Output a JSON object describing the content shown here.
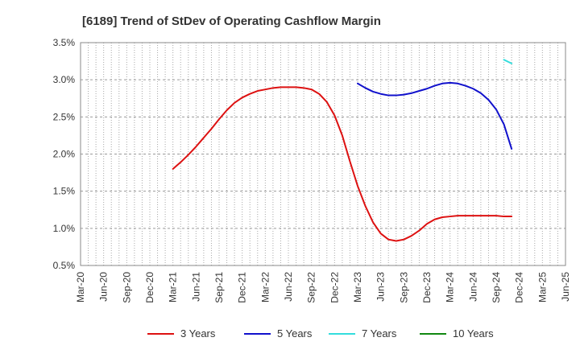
{
  "chart_data": {
    "type": "line",
    "title": "[6189]  Trend of StDev of Operating Cashflow Margin",
    "xlabel": "",
    "ylabel": "",
    "grid": true,
    "legend_position": "bottom",
    "x_ticks": [
      "Mar-20",
      "Jun-20",
      "Sep-20",
      "Dec-20",
      "Mar-21",
      "Jun-21",
      "Sep-21",
      "Dec-21",
      "Mar-22",
      "Jun-22",
      "Sep-22",
      "Dec-22",
      "Mar-23",
      "Jun-23",
      "Sep-23",
      "Dec-23",
      "Mar-24",
      "Jun-24",
      "Sep-24",
      "Dec-24",
      "Mar-25",
      "Jun-25"
    ],
    "y_ticks": [
      "0.5%",
      "1.0%",
      "1.5%",
      "2.0%",
      "2.5%",
      "3.0%",
      "3.5%"
    ],
    "ylim": [
      0.5,
      3.5
    ],
    "y_unit": "%",
    "series": [
      {
        "name": "3 Years",
        "color": "#dd1111",
        "points": [
          [
            "Mar-21",
            1.8
          ],
          [
            "Apr-21",
            1.89
          ],
          [
            "May-21",
            1.99
          ],
          [
            "Jun-21",
            2.1
          ],
          [
            "Jul-21",
            2.22
          ],
          [
            "Aug-21",
            2.34
          ],
          [
            "Sep-21",
            2.47
          ],
          [
            "Oct-21",
            2.59
          ],
          [
            "Nov-21",
            2.69
          ],
          [
            "Dec-21",
            2.76
          ],
          [
            "Jan-22",
            2.81
          ],
          [
            "Feb-22",
            2.85
          ],
          [
            "Mar-22",
            2.87
          ],
          [
            "Apr-22",
            2.89
          ],
          [
            "May-22",
            2.9
          ],
          [
            "Jun-22",
            2.9
          ],
          [
            "Jul-22",
            2.9
          ],
          [
            "Aug-22",
            2.89
          ],
          [
            "Sep-22",
            2.87
          ],
          [
            "Oct-22",
            2.81
          ],
          [
            "Nov-22",
            2.7
          ],
          [
            "Dec-22",
            2.52
          ],
          [
            "Jan-23",
            2.25
          ],
          [
            "Feb-23",
            1.9
          ],
          [
            "Mar-23",
            1.57
          ],
          [
            "Apr-23",
            1.3
          ],
          [
            "May-23",
            1.08
          ],
          [
            "Jun-23",
            0.93
          ],
          [
            "Jul-23",
            0.85
          ],
          [
            "Aug-23",
            0.83
          ],
          [
            "Sep-23",
            0.85
          ],
          [
            "Oct-23",
            0.9
          ],
          [
            "Nov-23",
            0.97
          ],
          [
            "Dec-23",
            1.06
          ],
          [
            "Jan-24",
            1.12
          ],
          [
            "Feb-24",
            1.15
          ],
          [
            "Mar-24",
            1.16
          ],
          [
            "Apr-24",
            1.17
          ],
          [
            "May-24",
            1.17
          ],
          [
            "Jun-24",
            1.17
          ],
          [
            "Jul-24",
            1.17
          ],
          [
            "Aug-24",
            1.17
          ],
          [
            "Sep-24",
            1.17
          ],
          [
            "Oct-24",
            1.16
          ],
          [
            "Nov-24",
            1.16
          ]
        ]
      },
      {
        "name": "5 Years",
        "color": "#1111cc",
        "points": [
          [
            "Mar-23",
            2.95
          ],
          [
            "Apr-23",
            2.89
          ],
          [
            "May-23",
            2.84
          ],
          [
            "Jun-23",
            2.81
          ],
          [
            "Jul-23",
            2.79
          ],
          [
            "Aug-23",
            2.79
          ],
          [
            "Sep-23",
            2.8
          ],
          [
            "Oct-23",
            2.82
          ],
          [
            "Nov-23",
            2.85
          ],
          [
            "Dec-23",
            2.88
          ],
          [
            "Jan-24",
            2.92
          ],
          [
            "Feb-24",
            2.95
          ],
          [
            "Mar-24",
            2.96
          ],
          [
            "Apr-24",
            2.95
          ],
          [
            "May-24",
            2.92
          ],
          [
            "Jun-24",
            2.88
          ],
          [
            "Jul-24",
            2.82
          ],
          [
            "Aug-24",
            2.73
          ],
          [
            "Sep-24",
            2.6
          ],
          [
            "Oct-24",
            2.4
          ],
          [
            "Nov-24",
            2.07
          ]
        ]
      },
      {
        "name": "7 Years",
        "color": "#33dddd",
        "points": [
          [
            "Oct-24",
            3.27
          ],
          [
            "Nov-24",
            3.22
          ]
        ]
      },
      {
        "name": "10 Years",
        "color": "#118811",
        "points": []
      }
    ]
  }
}
